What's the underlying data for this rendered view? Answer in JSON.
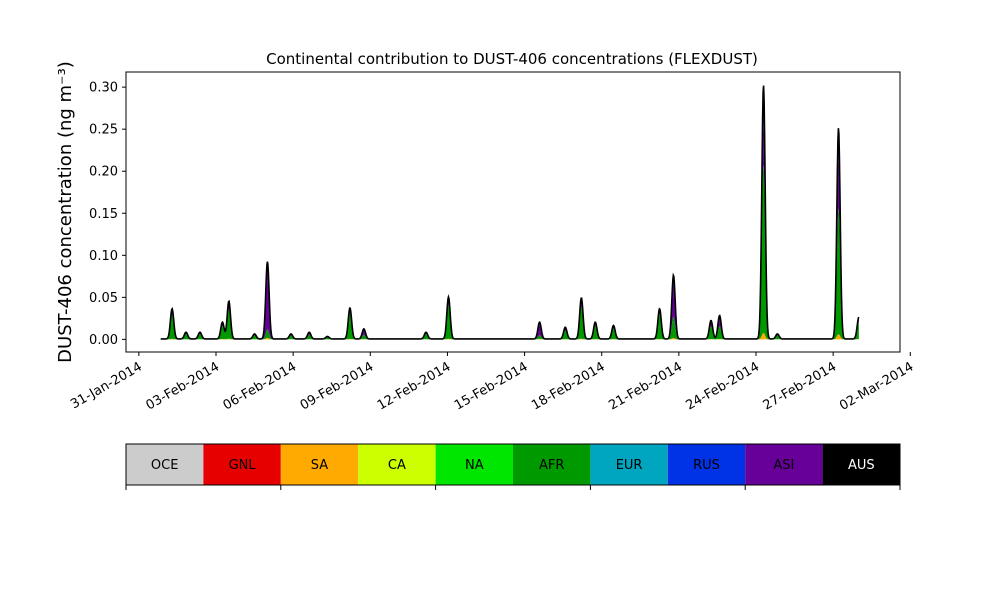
{
  "chart_data": {
    "type": "area",
    "stacked": true,
    "title": "Continental contribution to DUST-406 concentrations (FLEXDUST)",
    "xlabel": "",
    "ylabel": "DUST-406 concentration (ng m⁻³)",
    "ylim": [
      -0.015,
      0.318
    ],
    "xlim_days": [
      -0.5,
      29.6
    ],
    "x_axis_origin": "31-Jan-2014",
    "yticks": [
      0.0,
      0.05,
      0.1,
      0.15,
      0.2,
      0.25,
      0.3
    ],
    "ytick_labels": [
      "0.00",
      "0.05",
      "0.10",
      "0.15",
      "0.20",
      "0.25",
      "0.30"
    ],
    "xtick_labels": [
      "31-Jan-2014",
      "03-Feb-2014",
      "06-Feb-2014",
      "09-Feb-2014",
      "12-Feb-2014",
      "15-Feb-2014",
      "18-Feb-2014",
      "21-Feb-2014",
      "24-Feb-2014",
      "27-Feb-2014",
      "02-Mar-2014"
    ],
    "grid": false,
    "legend": [
      {
        "name": "OCE",
        "color": "#cccccc"
      },
      {
        "name": "GNL",
        "color": "#e60000"
      },
      {
        "name": "SA",
        "color": "#ffaa00"
      },
      {
        "name": "CA",
        "color": "#ccff00"
      },
      {
        "name": "NA",
        "color": "#00e600"
      },
      {
        "name": "AFR",
        "color": "#009900"
      },
      {
        "name": "EUR",
        "color": "#00a6bf"
      },
      {
        "name": "RUS",
        "color": "#0033e6"
      },
      {
        "name": "ASI",
        "color": "#660099"
      },
      {
        "name": "AUS",
        "color": "#000000"
      }
    ],
    "peaks": [
      {
        "date": "2014-02-01 07:00",
        "total": 0.036,
        "afr": 0.028,
        "asi": 0.004
      },
      {
        "date": "2014-02-01 20:00",
        "total": 0.008,
        "afr": 0.006,
        "asi": 0.001
      },
      {
        "date": "2014-02-02 09:00",
        "total": 0.008,
        "afr": 0.006,
        "asi": 0.001
      },
      {
        "date": "2014-02-03 06:00",
        "total": 0.02,
        "afr": 0.015,
        "asi": 0.002
      },
      {
        "date": "2014-02-03 12:00",
        "total": 0.045,
        "afr": 0.035,
        "asi": 0.005
      },
      {
        "date": "2014-02-04 12:00",
        "total": 0.006,
        "afr": 0.004,
        "asi": 0.001
      },
      {
        "date": "2014-02-05 00:00",
        "total": 0.092,
        "afr": 0.01,
        "asi": 0.07
      },
      {
        "date": "2014-02-05 22:00",
        "total": 0.006,
        "afr": 0.004,
        "asi": 0.001
      },
      {
        "date": "2014-02-06 15:00",
        "total": 0.008,
        "afr": 0.005,
        "asi": 0.002
      },
      {
        "date": "2014-02-07 08:00",
        "total": 0.003,
        "afr": 0.002,
        "asi": 0.001
      },
      {
        "date": "2014-02-08 05:00",
        "total": 0.037,
        "afr": 0.03,
        "asi": 0.004
      },
      {
        "date": "2014-02-08 18:00",
        "total": 0.012,
        "afr": 0.005,
        "asi": 0.005
      },
      {
        "date": "2014-02-11 04:00",
        "total": 0.008,
        "afr": 0.006,
        "asi": 0.001
      },
      {
        "date": "2014-02-12 01:00",
        "total": 0.05,
        "afr": 0.04,
        "asi": 0.005
      },
      {
        "date": "2014-02-15 14:00",
        "total": 0.02,
        "afr": 0.004,
        "asi": 0.012
      },
      {
        "date": "2014-02-16 14:00",
        "total": 0.014,
        "afr": 0.01,
        "asi": 0.002
      },
      {
        "date": "2014-02-17 05:00",
        "total": 0.049,
        "afr": 0.038,
        "asi": 0.006
      },
      {
        "date": "2014-02-17 18:00",
        "total": 0.02,
        "afr": 0.016,
        "asi": 0.002
      },
      {
        "date": "2014-02-18 11:00",
        "total": 0.016,
        "afr": 0.012,
        "asi": 0.002
      },
      {
        "date": "2014-02-20 06:00",
        "total": 0.036,
        "afr": 0.03,
        "asi": 0.003
      },
      {
        "date": "2014-02-20 19:00",
        "total": 0.076,
        "afr": 0.025,
        "asi": 0.04
      },
      {
        "date": "2014-02-22 06:00",
        "total": 0.022,
        "afr": 0.015,
        "asi": 0.005
      },
      {
        "date": "2014-02-22 14:00",
        "total": 0.028,
        "afr": 0.015,
        "asi": 0.01
      },
      {
        "date": "2014-02-24 07:00",
        "total": 0.302,
        "afr": 0.2,
        "asi": 0.05
      },
      {
        "date": "2014-02-24 20:00",
        "total": 0.006,
        "afr": 0.004,
        "asi": 0.001
      },
      {
        "date": "2014-02-27 05:00",
        "total": 0.251,
        "afr": 0.15,
        "asi": 0.06
      },
      {
        "date": "2014-02-28 00:00",
        "total": 0.026,
        "afr": 0.02,
        "asi": 0.003
      },
      {
        "date": "2014-02-29 02:00",
        "total": 0.024,
        "afr": 0.008,
        "asi": 0.012
      },
      {
        "date": "2014-02-29 12:00",
        "total": 0.025,
        "afr": 0.01,
        "asi": 0.01
      },
      {
        "date": "2014-03-01 18:00",
        "total": 0.007,
        "afr": 0.005,
        "asi": 0.001
      }
    ]
  }
}
